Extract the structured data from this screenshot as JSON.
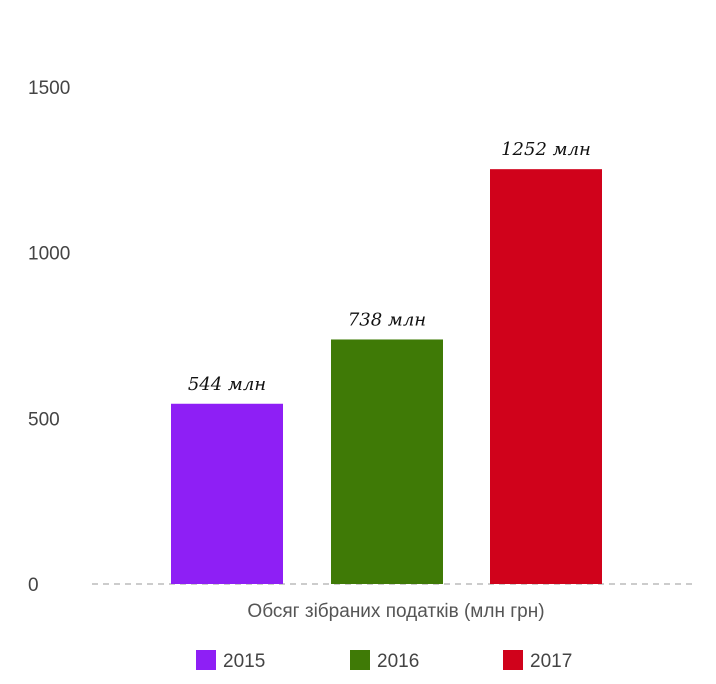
{
  "chart_data": {
    "type": "bar",
    "categories": [
      "2015",
      "2016",
      "2017"
    ],
    "values": [
      544,
      738,
      1252
    ],
    "data_labels": [
      "544 млн",
      "738 млн",
      "1252 млн"
    ],
    "colors": [
      "#8e1ff5",
      "#3f7a06",
      "#d0021b"
    ],
    "xlabel": "Обсяг зібраних податків (млн грн)",
    "ylabel": "",
    "ylim": [
      0,
      1500
    ],
    "yticks": [
      "0",
      "500",
      "1000",
      "1500"
    ],
    "legend": [
      "2015",
      "2016",
      "2017"
    ],
    "legend_position": "bottom",
    "grid": false,
    "baseline_style": "dashed"
  }
}
